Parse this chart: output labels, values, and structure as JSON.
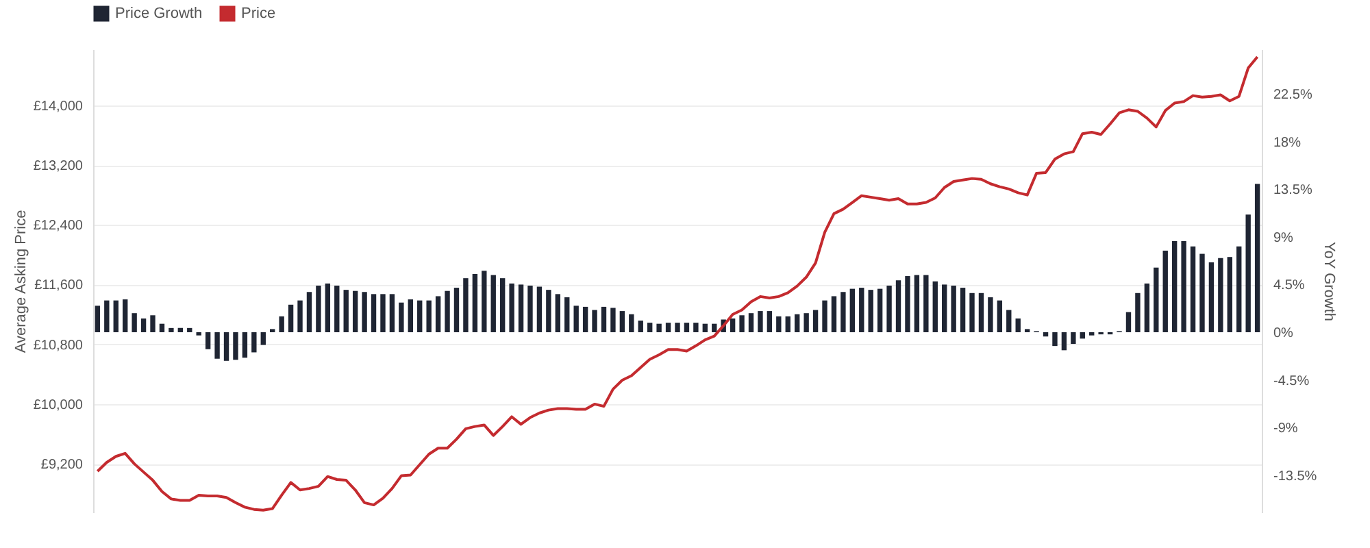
{
  "chart_data": {
    "type": "bar",
    "ylabel": "Average Asking Price",
    "y2label": "YoY Growth",
    "categories": [
      null,
      null,
      null,
      null,
      null,
      null,
      null,
      null,
      null,
      null,
      null,
      null,
      null,
      null,
      null,
      null,
      null,
      null,
      null,
      null,
      null,
      null,
      null,
      null,
      null,
      null,
      null,
      null,
      null,
      null,
      null,
      null,
      null,
      null,
      null,
      null,
      null,
      null,
      null,
      null,
      null,
      null,
      null,
      null,
      null,
      null,
      null,
      null,
      null,
      null,
      null,
      null,
      null,
      null,
      null,
      null,
      null,
      null,
      null,
      null,
      null,
      null,
      null,
      null,
      null,
      null,
      null,
      null,
      null,
      null,
      null,
      null,
      null,
      null,
      null,
      null,
      null,
      null,
      null,
      null,
      null,
      null,
      null,
      null,
      null,
      null,
      null,
      null,
      null,
      null,
      null,
      null,
      null,
      null,
      null,
      null,
      null,
      null,
      null,
      null,
      null,
      null,
      null,
      null,
      null,
      null,
      null,
      null,
      null,
      null,
      null,
      null,
      null,
      null,
      null,
      null,
      null,
      null,
      null,
      null,
      null,
      null,
      null,
      null,
      null,
      null,
      null
    ],
    "series": [
      {
        "name": "Price Growth",
        "axis": "y2",
        "color": "#1f2533",
        "values": [
          2.5,
          3.0,
          3.0,
          3.1,
          1.8,
          1.3,
          1.6,
          0.8,
          0.4,
          0.4,
          0.4,
          -0.3,
          -1.6,
          -2.5,
          -2.7,
          -2.6,
          -2.4,
          -1.9,
          -1.2,
          0.3,
          1.5,
          2.6,
          3.0,
          3.8,
          4.4,
          4.6,
          4.4,
          4.0,
          3.9,
          3.8,
          3.6,
          3.6,
          3.6,
          2.8,
          3.1,
          3.0,
          3.0,
          3.4,
          3.9,
          4.2,
          5.1,
          5.5,
          5.8,
          5.4,
          5.1,
          4.6,
          4.5,
          4.4,
          4.3,
          4.0,
          3.6,
          3.3,
          2.5,
          2.4,
          2.1,
          2.4,
          2.3,
          2.0,
          1.7,
          1.1,
          0.9,
          0.8,
          0.9,
          0.9,
          0.9,
          0.9,
          0.8,
          0.8,
          1.2,
          1.3,
          1.6,
          1.8,
          2.0,
          2.0,
          1.5,
          1.5,
          1.7,
          1.8,
          2.1,
          3.0,
          3.4,
          3.8,
          4.1,
          4.2,
          4.0,
          4.1,
          4.4,
          4.9,
          5.3,
          5.4,
          5.4,
          4.8,
          4.5,
          4.4,
          4.2,
          3.7,
          3.7,
          3.3,
          3.0,
          2.1,
          1.3,
          0.3,
          0.1,
          -0.4,
          -1.3,
          -1.7,
          -1.1,
          -0.6,
          -0.3,
          -0.2,
          -0.2,
          0.1,
          1.9,
          3.7,
          4.6,
          6.1,
          7.7,
          8.6,
          8.6,
          8.1,
          7.4,
          6.6,
          7.0,
          7.1,
          8.1,
          11.1,
          14.0
        ]
      },
      {
        "name": "Price",
        "type": "line",
        "color": "#c42b2f",
        "values": [
          9100,
          9220,
          9300,
          9340,
          9200,
          9090,
          8980,
          8830,
          8730,
          8710,
          8710,
          8780,
          8770,
          8770,
          8750,
          8680,
          8620,
          8590,
          8580,
          8600,
          8780,
          8950,
          8850,
          8870,
          8900,
          9030,
          8990,
          8980,
          8850,
          8680,
          8650,
          8740,
          8870,
          9040,
          9050,
          9190,
          9330,
          9410,
          9410,
          9530,
          9670,
          9700,
          9720,
          9580,
          9700,
          9830,
          9730,
          9820,
          9880,
          9920,
          9940,
          9940,
          9930,
          9930,
          10000,
          9970,
          10200,
          10320,
          10380,
          10490,
          10600,
          10660,
          10730,
          10730,
          10710,
          10780,
          10860,
          10910,
          11050,
          11200,
          11260,
          11370,
          11440,
          11420,
          11440,
          11490,
          11580,
          11700,
          11890,
          12300,
          12550,
          12610,
          12700,
          12790,
          12770,
          12750,
          12730,
          12750,
          12680,
          12680,
          12700,
          12760,
          12900,
          12980,
          13000,
          13020,
          13010,
          12950,
          12910,
          12880,
          12830,
          12800,
          13090,
          13100,
          13280,
          13350,
          13380,
          13620,
          13640,
          13610,
          13750,
          13900,
          13940,
          13920,
          13830,
          13710,
          13930,
          14030,
          14050,
          14130,
          14110,
          14120,
          14140,
          14060,
          14120,
          14500,
          14650
        ]
      }
    ],
    "ylim": [
      8550,
      14750
    ],
    "yticks": [
      {
        "value": 9200,
        "label": "£9,200"
      },
      {
        "value": 10000,
        "label": "£10,000"
      },
      {
        "value": 10800,
        "label": "£10,800"
      },
      {
        "value": 11600,
        "label": "£11,600"
      },
      {
        "value": 12400,
        "label": "£12,400"
      },
      {
        "value": 13200,
        "label": "£13,200"
      },
      {
        "value": 14000,
        "label": "£14,000"
      }
    ],
    "y2lim": [
      -17,
      26.7
    ],
    "y2ticks": [
      {
        "value": -13.5,
        "label": "-13.5%"
      },
      {
        "value": -9,
        "label": "-9%"
      },
      {
        "value": -4.5,
        "label": "-4.5%"
      },
      {
        "value": 0,
        "label": "0%"
      },
      {
        "value": 4.5,
        "label": "4.5%"
      },
      {
        "value": 9,
        "label": "9%"
      },
      {
        "value": 13.5,
        "label": "13.5%"
      },
      {
        "value": 18,
        "label": "18%"
      },
      {
        "value": 22.5,
        "label": "22.5%"
      }
    ],
    "grid": "y",
    "legend": "top"
  }
}
